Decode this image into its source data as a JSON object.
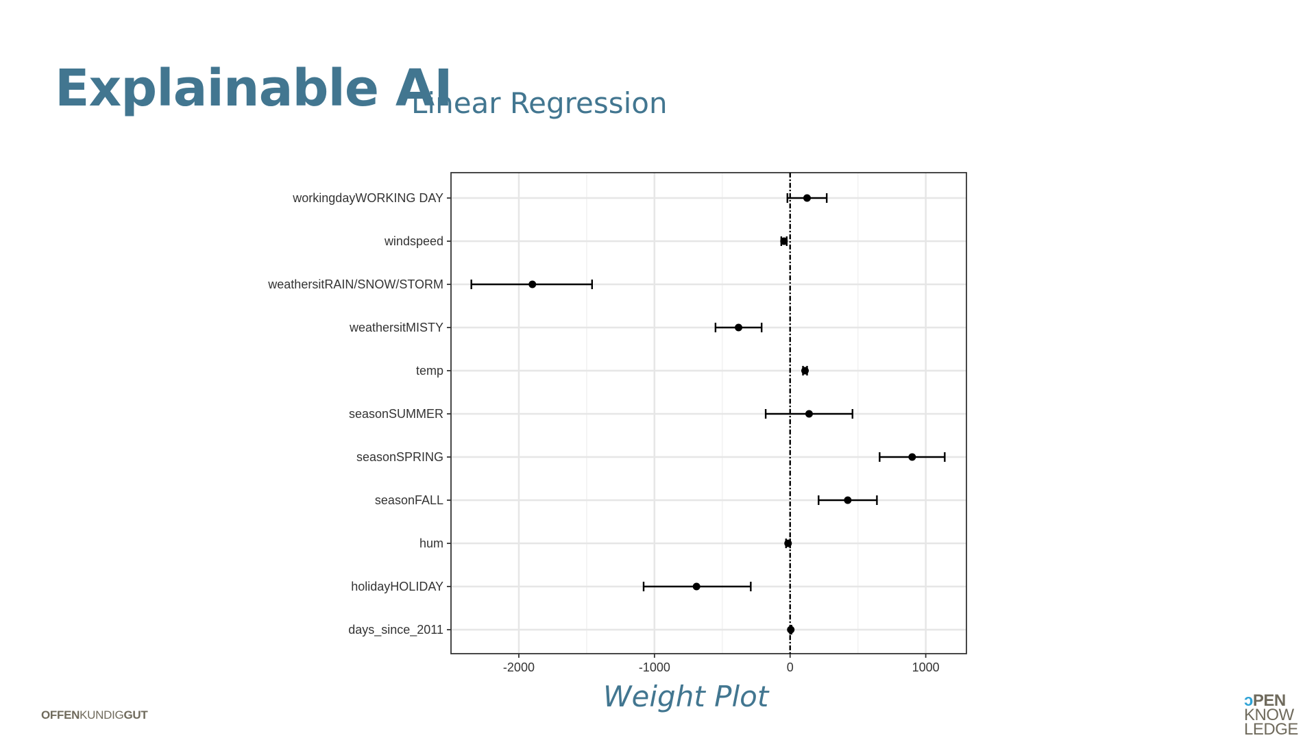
{
  "slide": {
    "title": "Explainable AI",
    "subtitle": "Linear Regression",
    "caption": "Weight Plot"
  },
  "footer": {
    "left_brand": [
      "OFFEN",
      "KUNDIG",
      "GUT"
    ],
    "right_brand": {
      "o_mark": "ɔ",
      "line1_rest": "PEN",
      "line2": "KNOW",
      "line3": "LEDGE"
    }
  },
  "colors": {
    "title": "#427690",
    "brand_grey": "#6f6a5c",
    "brand_blue": "#2ea3d6",
    "point": "#000000",
    "grid": "#e6e6e6"
  },
  "chart_data": {
    "type": "scatter",
    "title": "",
    "xlabel": "",
    "ylabel": "",
    "xlim": [
      -2500,
      1300
    ],
    "xticks": [
      -2000,
      -1000,
      0,
      1000
    ],
    "xtick_labels": [
      "-2000",
      "-1000",
      "0",
      "1000"
    ],
    "reference_line": 0,
    "grid": true,
    "features": [
      {
        "name": "workingdayWORKING DAY",
        "estimate": 125,
        "lower": -20,
        "upper": 270
      },
      {
        "name": "windspeed",
        "estimate": -45,
        "lower": -65,
        "upper": -25
      },
      {
        "name": "weathersitRAIN/SNOW/STORM",
        "estimate": -1900,
        "lower": -2350,
        "upper": -1460
      },
      {
        "name": "weathersitMISTY",
        "estimate": -380,
        "lower": -550,
        "upper": -210
      },
      {
        "name": "temp",
        "estimate": 110,
        "lower": 95,
        "upper": 125
      },
      {
        "name": "seasonSUMMER",
        "estimate": 140,
        "lower": -180,
        "upper": 460
      },
      {
        "name": "seasonSPRING",
        "estimate": 900,
        "lower": 660,
        "upper": 1140
      },
      {
        "name": "seasonFALL",
        "estimate": 425,
        "lower": 210,
        "upper": 640
      },
      {
        "name": "hum",
        "estimate": -15,
        "lower": -30,
        "upper": 0
      },
      {
        "name": "holidayHOLIDAY",
        "estimate": -690,
        "lower": -1080,
        "upper": -290
      },
      {
        "name": "days_since_2011",
        "estimate": 5,
        "lower": 0,
        "upper": 10
      }
    ]
  }
}
